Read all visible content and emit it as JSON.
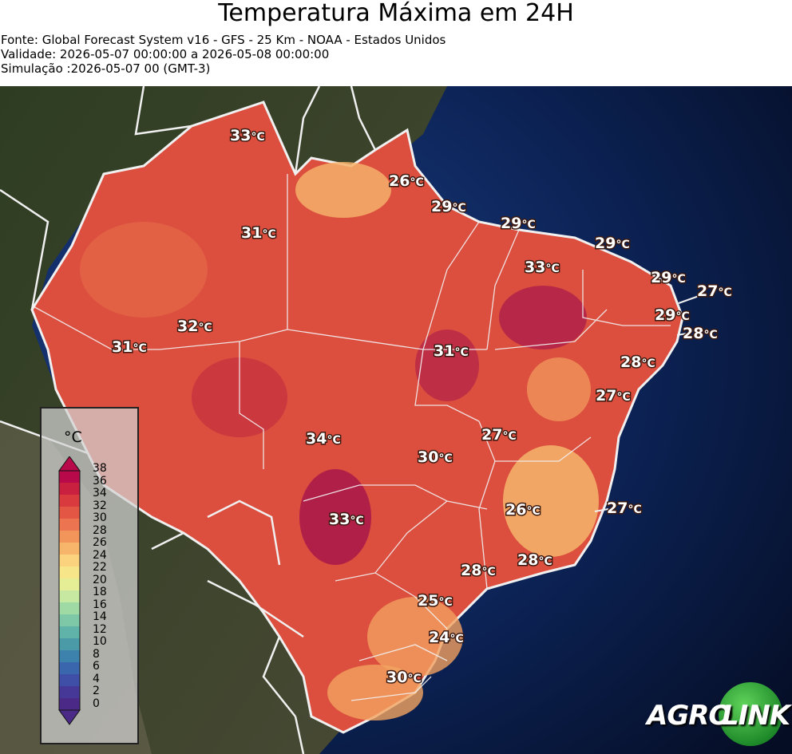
{
  "header": {
    "title": "Temperatura Máxima em 24H",
    "source": "Fonte: Global Forecast System v16 - GFS - 25 Km - NOAA - Estados Unidos",
    "validity": "Validade: 2026-05-07 00:00:00 a 2026-05-08 00:00:00",
    "simulation": "Simulação :2026-05-07 00 (GMT-3)"
  },
  "legend": {
    "unit": "°C",
    "ticks": [
      "38",
      "36",
      "34",
      "32",
      "30",
      "28",
      "26",
      "24",
      "22",
      "20",
      "18",
      "16",
      "14",
      "12",
      "10",
      "8",
      "6",
      "4",
      "2",
      "0"
    ],
    "colors": [
      "#b80a4a",
      "#c8203e",
      "#d83a3e",
      "#e35644",
      "#ec7450",
      "#f2955b",
      "#f7b56b",
      "#fbd27d",
      "#f7e58a",
      "#e6ee95",
      "#c6e8a0",
      "#9fd9a4",
      "#7ec8a8",
      "#5fb3a8",
      "#4a9aa8",
      "#3c82ad",
      "#3a66ae",
      "#3f4ea6",
      "#463896",
      "#4a2a86"
    ]
  },
  "temperature_labels": [
    {
      "value": "33",
      "unit": "°C"
    },
    {
      "value": "26",
      "unit": "°C"
    },
    {
      "value": "29",
      "unit": "°C"
    },
    {
      "value": "31",
      "unit": "°C"
    },
    {
      "value": "29",
      "unit": "°C"
    },
    {
      "value": "29",
      "unit": "°C"
    },
    {
      "value": "33",
      "unit": "°C"
    },
    {
      "value": "29",
      "unit": "°C"
    },
    {
      "value": "27",
      "unit": "°C"
    },
    {
      "value": "29",
      "unit": "°C"
    },
    {
      "value": "28",
      "unit": "°C"
    },
    {
      "value": "32",
      "unit": "°C"
    },
    {
      "value": "31",
      "unit": "°C"
    },
    {
      "value": "31",
      "unit": "°C"
    },
    {
      "value": "28",
      "unit": "°C"
    },
    {
      "value": "27",
      "unit": "°C"
    },
    {
      "value": "34",
      "unit": "°C"
    },
    {
      "value": "27",
      "unit": "°C"
    },
    {
      "value": "30",
      "unit": "°C"
    },
    {
      "value": "26",
      "unit": "°C"
    },
    {
      "value": "27",
      "unit": "°C"
    },
    {
      "value": "33",
      "unit": "°C"
    },
    {
      "value": "28",
      "unit": "°C"
    },
    {
      "value": "28",
      "unit": "°C"
    },
    {
      "value": "25",
      "unit": "°C"
    },
    {
      "value": "24",
      "unit": "°C"
    },
    {
      "value": "30",
      "unit": "°C"
    }
  ],
  "logo": {
    "left": "AGRO",
    "right": "LINK"
  }
}
